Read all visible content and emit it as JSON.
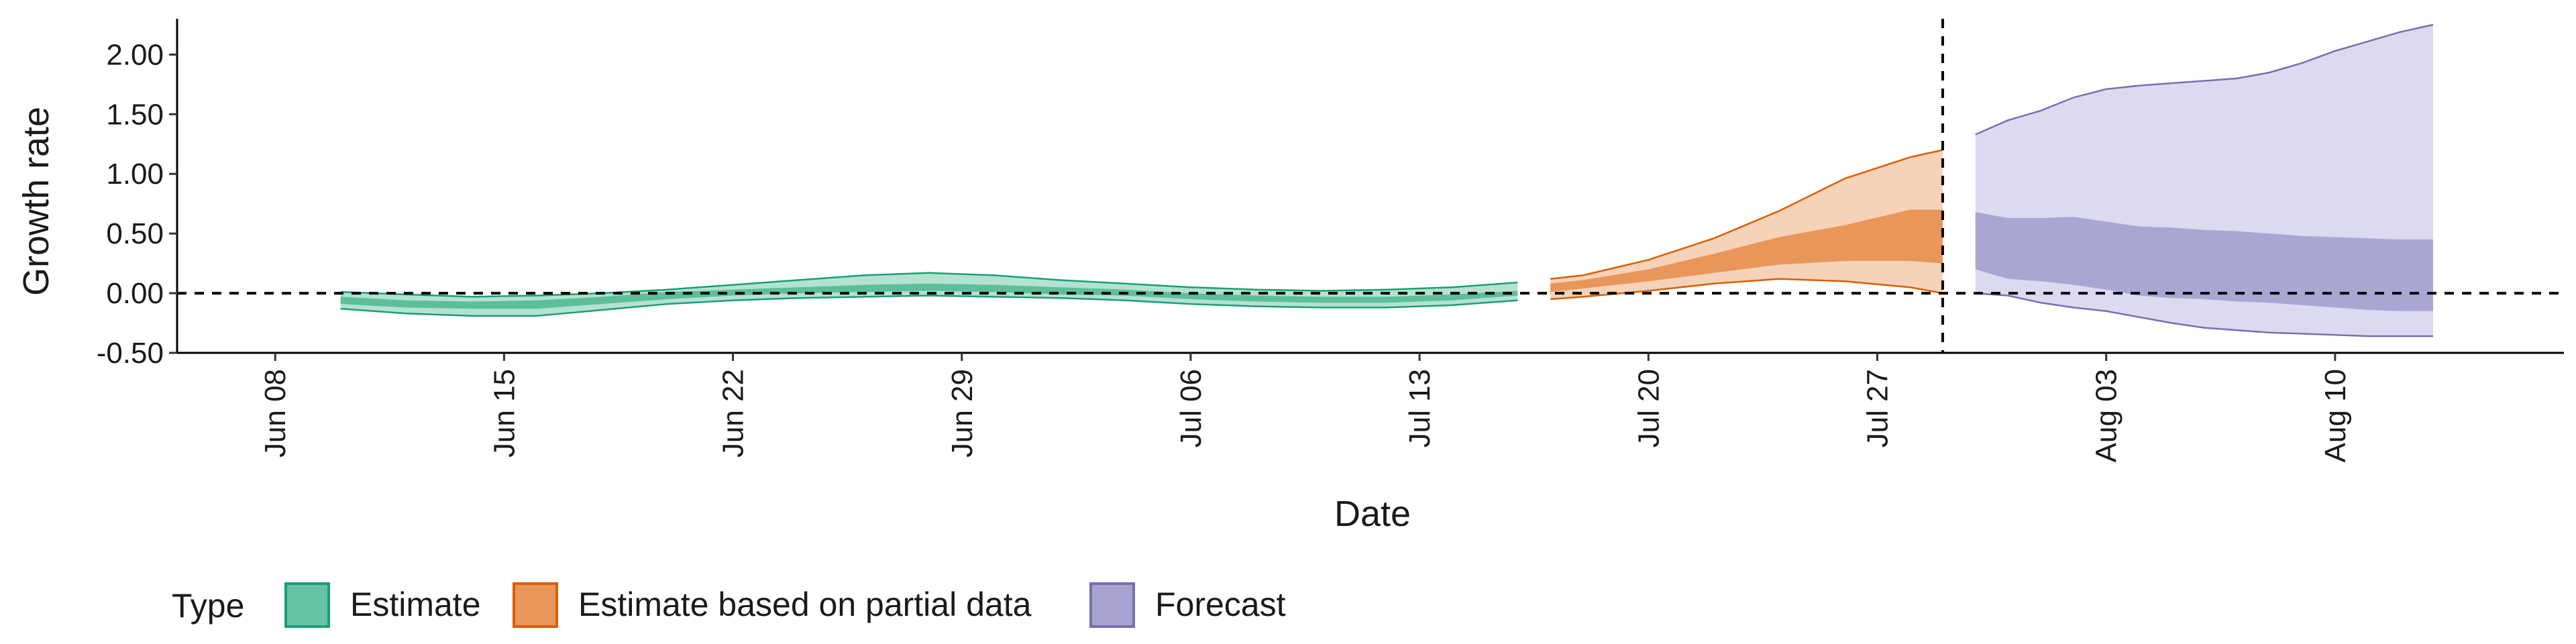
{
  "chart_data": {
    "type": "area",
    "xlabel": "Date",
    "ylabel": "Growth rate",
    "ylim": [
      -0.5,
      2.3
    ],
    "xlim": [
      "2020-06-05",
      "2020-08-17"
    ],
    "y_ticks": [
      {
        "value": -0.5,
        "label": "-0.50"
      },
      {
        "value": 0.0,
        "label": "0.00"
      },
      {
        "value": 0.5,
        "label": "0.50"
      },
      {
        "value": 1.0,
        "label": "1.00"
      },
      {
        "value": 1.5,
        "label": "1.50"
      },
      {
        "value": 2.0,
        "label": "2.00"
      }
    ],
    "x_ticks": [
      {
        "date": "2020-06-08",
        "label": "Jun 08"
      },
      {
        "date": "2020-06-15",
        "label": "Jun 15"
      },
      {
        "date": "2020-06-22",
        "label": "Jun 22"
      },
      {
        "date": "2020-06-29",
        "label": "Jun 29"
      },
      {
        "date": "2020-07-06",
        "label": "Jul 06"
      },
      {
        "date": "2020-07-13",
        "label": "Jul 13"
      },
      {
        "date": "2020-07-20",
        "label": "Jul 20"
      },
      {
        "date": "2020-07-27",
        "label": "Jul 27"
      },
      {
        "date": "2020-08-03",
        "label": "Aug 03"
      },
      {
        "date": "2020-08-10",
        "label": "Aug 10"
      }
    ],
    "reference_lines": {
      "horizontal_y": 0,
      "vertical_x": "2020-07-29"
    },
    "legend": {
      "title": "Type",
      "position": "bottom-left",
      "items": [
        {
          "label": "Estimate",
          "fill": "#66c2a5",
          "border": "#1b9e77"
        },
        {
          "label": "Estimate based on partial data",
          "fill": "#e8965a",
          "border": "#d95f02"
        },
        {
          "label": "Forecast",
          "fill": "#a8a3d1",
          "border": "#7570b3"
        }
      ]
    },
    "series": [
      {
        "type": "Estimate",
        "outer_color": "#b3e2d1",
        "inner_color": "#5cbf9a",
        "line_color": "#1b9e77",
        "dates": [
          "2020-06-10",
          "2020-06-12",
          "2020-06-14",
          "2020-06-16",
          "2020-06-18",
          "2020-06-20",
          "2020-06-22",
          "2020-06-24",
          "2020-06-26",
          "2020-06-28",
          "2020-06-30",
          "2020-07-02",
          "2020-07-04",
          "2020-07-06",
          "2020-07-08",
          "2020-07-10",
          "2020-07-12",
          "2020-07-14",
          "2020-07-16"
        ],
        "outer_lower": [
          -0.13,
          -0.17,
          -0.19,
          -0.19,
          -0.14,
          -0.09,
          -0.06,
          -0.04,
          -0.03,
          -0.02,
          -0.03,
          -0.04,
          -0.06,
          -0.09,
          -0.11,
          -0.12,
          -0.12,
          -0.1,
          -0.06
        ],
        "inner_lower": [
          -0.09,
          -0.12,
          -0.13,
          -0.13,
          -0.09,
          -0.05,
          -0.02,
          0.0,
          0.01,
          0.02,
          0.01,
          -0.01,
          -0.02,
          -0.05,
          -0.07,
          -0.08,
          -0.08,
          -0.06,
          -0.02
        ],
        "inner_upper": [
          -0.03,
          -0.06,
          -0.07,
          -0.06,
          -0.03,
          0.01,
          0.03,
          0.05,
          0.07,
          0.08,
          0.07,
          0.05,
          0.03,
          0.0,
          -0.02,
          -0.03,
          -0.03,
          -0.01,
          0.02
        ],
        "outer_upper": [
          0.01,
          -0.01,
          -0.03,
          -0.02,
          0.0,
          0.03,
          0.07,
          0.11,
          0.15,
          0.17,
          0.15,
          0.11,
          0.08,
          0.05,
          0.03,
          0.02,
          0.03,
          0.05,
          0.09
        ]
      },
      {
        "type": "Estimate based on partial data",
        "outer_color": "#f5d2b8",
        "inner_color": "#e8965a",
        "line_color": "#d95f02",
        "dates": [
          "2020-07-17",
          "2020-07-18",
          "2020-07-20",
          "2020-07-22",
          "2020-07-24",
          "2020-07-26",
          "2020-07-28",
          "2020-07-29"
        ],
        "outer_lower": [
          -0.05,
          -0.03,
          0.02,
          0.08,
          0.12,
          0.1,
          0.05,
          0.0
        ],
        "inner_lower": [
          0.01,
          0.04,
          0.1,
          0.17,
          0.24,
          0.27,
          0.27,
          0.25
        ],
        "inner_upper": [
          0.08,
          0.11,
          0.2,
          0.33,
          0.47,
          0.57,
          0.7,
          0.7
        ],
        "outer_upper": [
          0.12,
          0.15,
          0.28,
          0.46,
          0.69,
          0.96,
          1.14,
          1.2
        ]
      },
      {
        "type": "Forecast",
        "outer_color": "#dcdaee",
        "inner_color": "#aaa6d4",
        "line_color": "#7570b3",
        "dates": [
          "2020-07-30",
          "2020-07-31",
          "2020-08-01",
          "2020-08-02",
          "2020-08-03",
          "2020-08-04",
          "2020-08-05",
          "2020-08-06",
          "2020-08-07",
          "2020-08-08",
          "2020-08-09",
          "2020-08-10",
          "2020-08-11",
          "2020-08-12",
          "2020-08-13"
        ],
        "outer_lower": [
          0.0,
          -0.02,
          -0.08,
          -0.12,
          -0.15,
          -0.2,
          -0.25,
          -0.29,
          -0.31,
          -0.33,
          -0.34,
          -0.35,
          -0.36,
          -0.36,
          -0.36
        ],
        "inner_lower": [
          0.2,
          0.12,
          0.1,
          0.07,
          0.03,
          -0.02,
          -0.04,
          -0.05,
          -0.07,
          -0.08,
          -0.1,
          -0.12,
          -0.14,
          -0.15,
          -0.15
        ],
        "inner_upper": [
          0.68,
          0.63,
          0.63,
          0.64,
          0.6,
          0.56,
          0.55,
          0.53,
          0.52,
          0.5,
          0.48,
          0.47,
          0.46,
          0.45,
          0.45
        ],
        "outer_upper": [
          1.33,
          1.45,
          1.53,
          1.64,
          1.71,
          1.74,
          1.76,
          1.78,
          1.8,
          1.85,
          1.93,
          2.03,
          2.11,
          2.19,
          2.25
        ]
      }
    ]
  }
}
